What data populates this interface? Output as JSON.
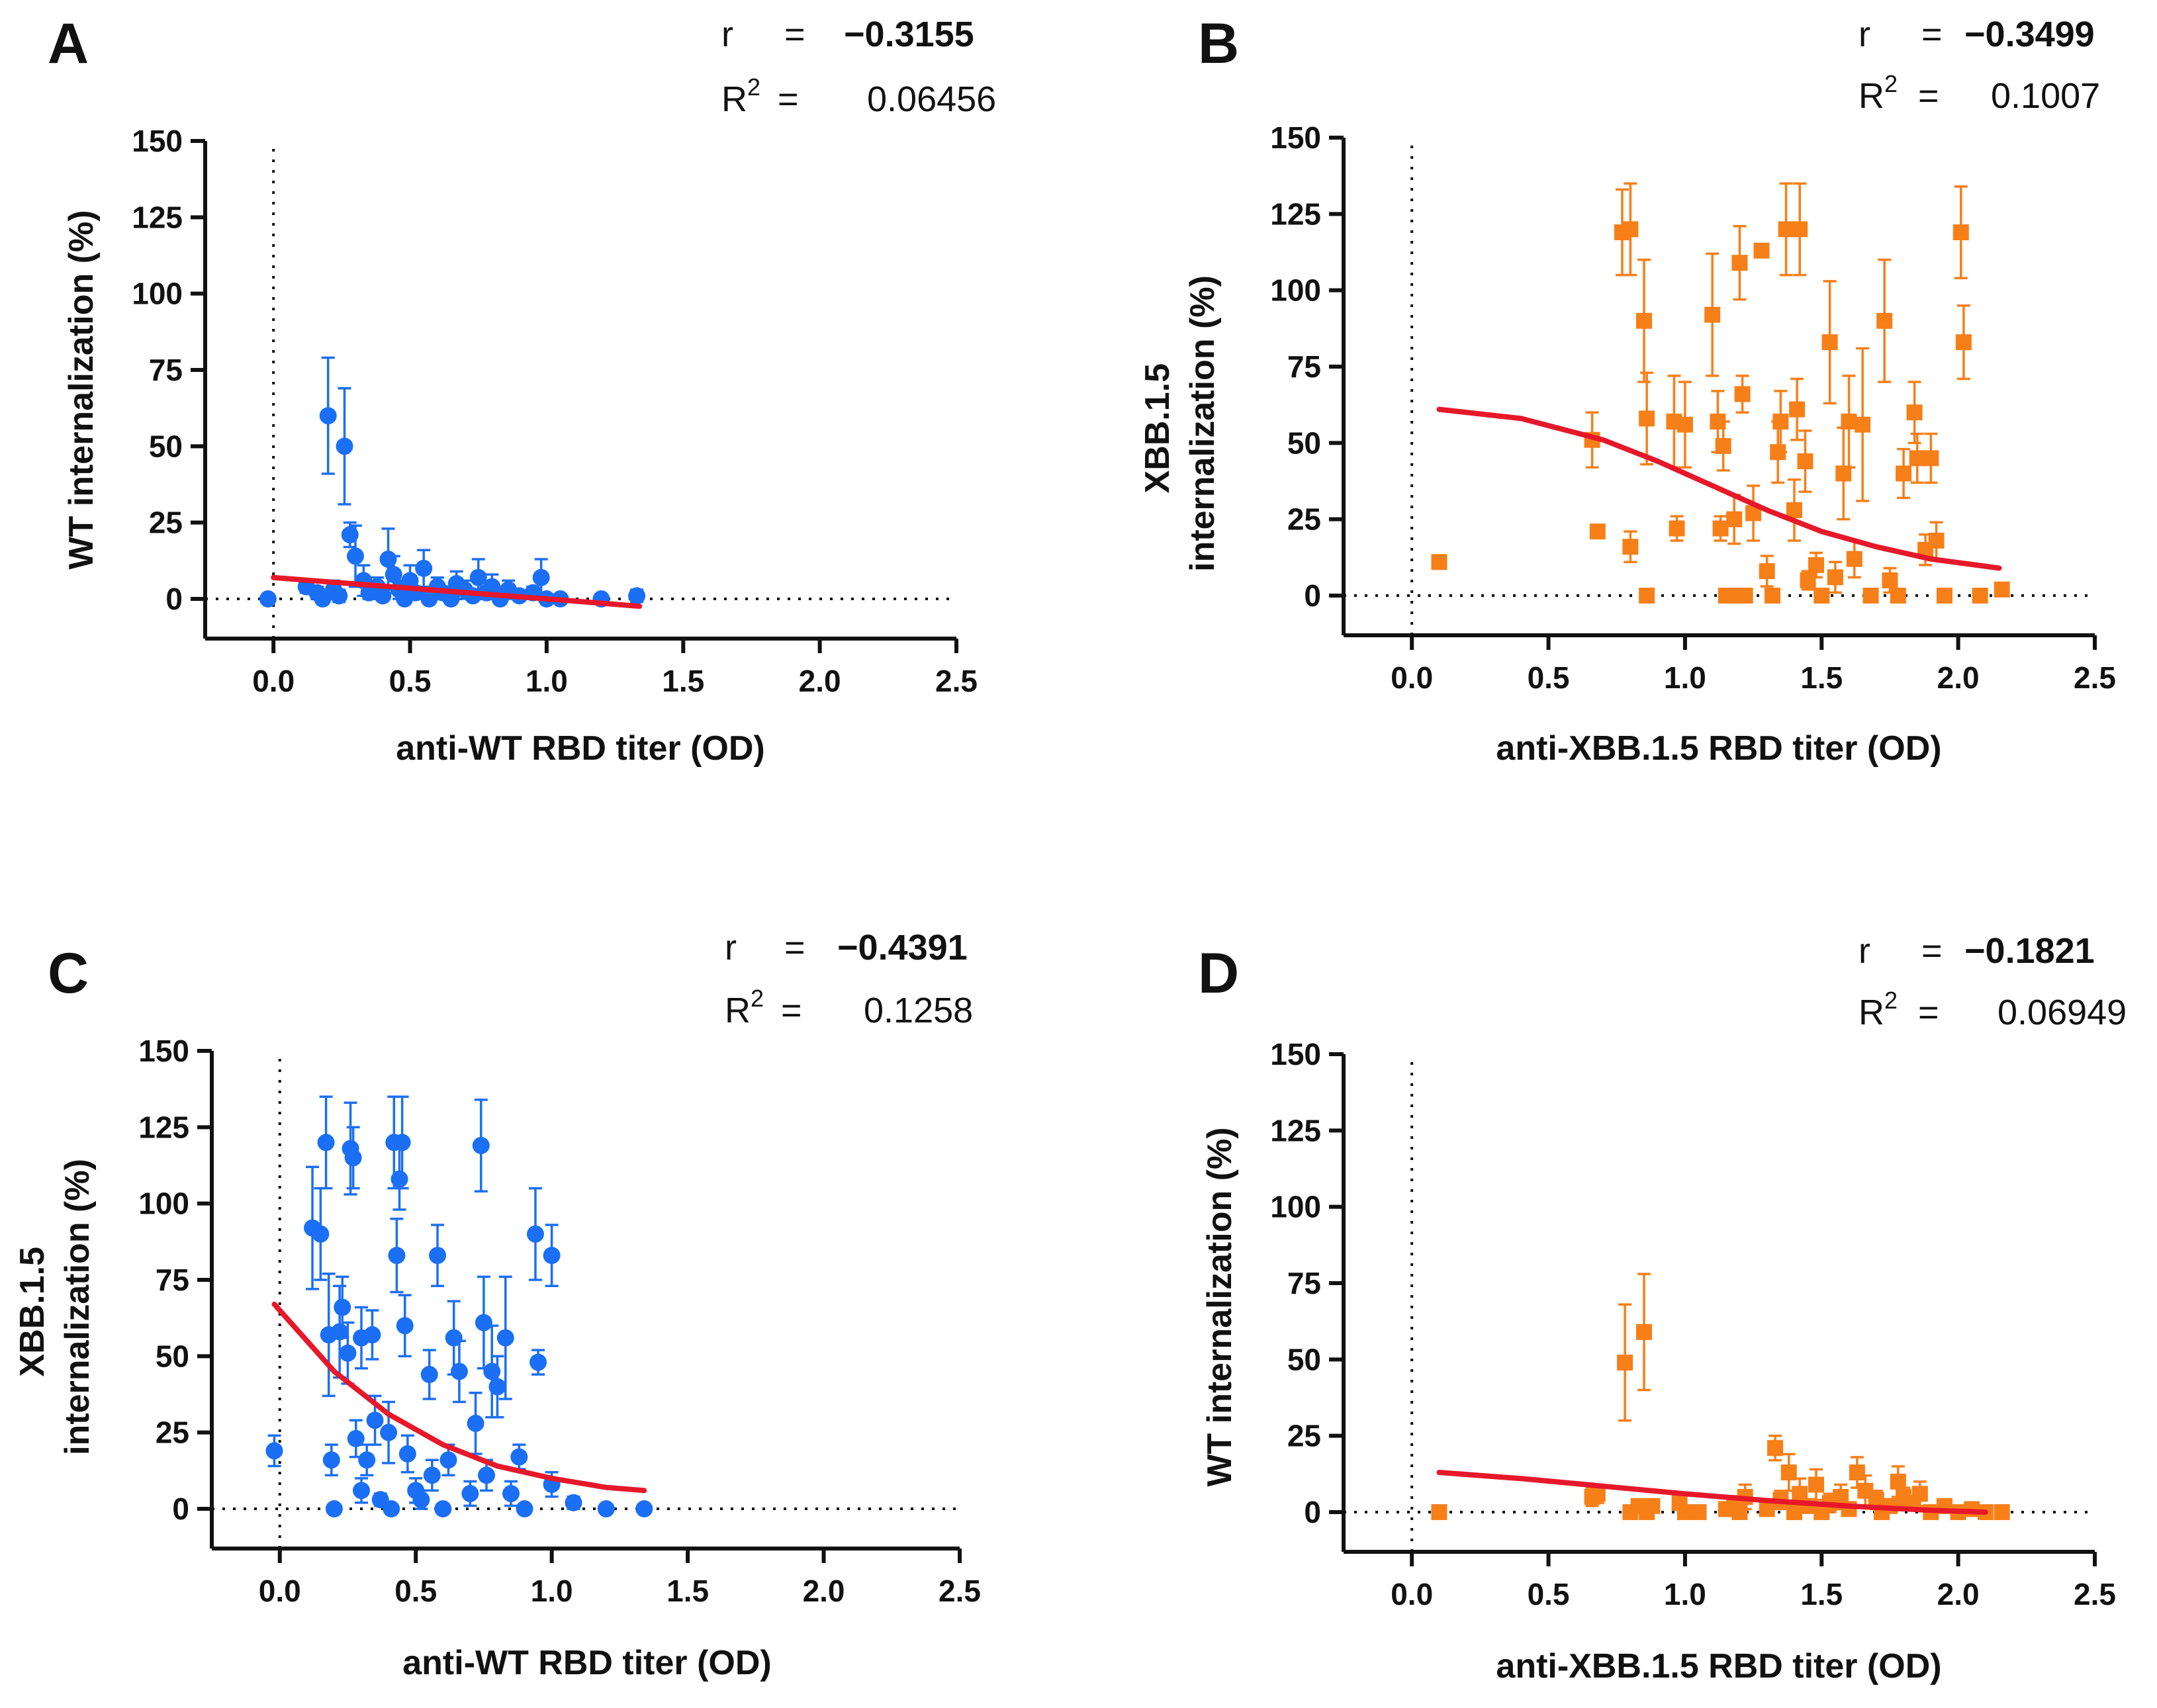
{
  "figure": {
    "background": "#ffffff",
    "colors": {
      "blue": "#1a6ff5",
      "orange": "#f77f18",
      "fit": "#e6182a",
      "axis": "#111111"
    }
  },
  "chart_data": [
    {
      "id": "A",
      "type": "scatter",
      "letter": "A",
      "color": "blue",
      "marker": "circle",
      "stats": {
        "r_label": "r",
        "r_eq": "=",
        "r": "−0.3155",
        "r2_label": "R",
        "r2_sup": "2",
        "r2_eq": "=",
        "r2": "0.06456"
      },
      "xlabel": "anti-WT RBD titer (OD)",
      "ylabel_lines": [
        "WT internalization (%)"
      ],
      "xlim": [
        -0.25,
        2.5
      ],
      "ylim": [
        -13,
        150
      ],
      "xticks": [
        "0.0",
        "0.5",
        "1.0",
        "1.5",
        "2.0",
        "2.5"
      ],
      "xtick_values": [
        0,
        0.5,
        1,
        1.5,
        2,
        2.5
      ],
      "yticks": [
        "0",
        "25",
        "50",
        "75",
        "100",
        "125",
        "150"
      ],
      "ytick_values": [
        0,
        25,
        50,
        75,
        100,
        125,
        150
      ],
      "fit": {
        "x": [
          0,
          0.2,
          0.4,
          0.6,
          0.8,
          1.0,
          1.2,
          1.34
        ],
        "y": [
          7,
          5.6,
          4.2,
          2.8,
          1.4,
          0,
          -1.4,
          -2.4
        ]
      },
      "points": [
        [
          -0.02,
          0,
          0
        ],
        [
          0.12,
          4,
          2
        ],
        [
          0.16,
          2,
          2
        ],
        [
          0.18,
          0,
          1
        ],
        [
          0.2,
          60,
          19
        ],
        [
          0.22,
          3,
          3
        ],
        [
          0.24,
          1,
          2
        ],
        [
          0.26,
          50,
          19
        ],
        [
          0.28,
          21,
          4
        ],
        [
          0.3,
          14,
          10
        ],
        [
          0.33,
          6,
          5
        ],
        [
          0.35,
          2,
          2
        ],
        [
          0.38,
          4,
          3
        ],
        [
          0.4,
          1,
          1
        ],
        [
          0.42,
          13,
          10
        ],
        [
          0.44,
          8,
          6
        ],
        [
          0.46,
          3,
          3
        ],
        [
          0.48,
          0,
          1
        ],
        [
          0.5,
          6,
          5
        ],
        [
          0.52,
          2,
          2
        ],
        [
          0.55,
          10,
          6
        ],
        [
          0.57,
          0,
          1
        ],
        [
          0.6,
          4,
          3
        ],
        [
          0.62,
          2,
          2
        ],
        [
          0.65,
          0,
          1
        ],
        [
          0.67,
          5,
          4
        ],
        [
          0.7,
          3,
          3
        ],
        [
          0.73,
          1,
          1
        ],
        [
          0.75,
          7,
          6
        ],
        [
          0.78,
          2,
          2
        ],
        [
          0.8,
          4,
          4
        ],
        [
          0.83,
          0,
          1
        ],
        [
          0.86,
          3,
          3
        ],
        [
          0.9,
          1,
          1
        ],
        [
          0.95,
          2,
          2
        ],
        [
          0.98,
          7,
          6
        ],
        [
          1.0,
          0,
          1
        ],
        [
          1.05,
          0,
          1
        ],
        [
          1.2,
          0,
          1
        ],
        [
          1.33,
          1,
          2
        ]
      ]
    },
    {
      "id": "B",
      "type": "scatter",
      "letter": "B",
      "color": "orange",
      "marker": "square",
      "stats": {
        "r_label": "r",
        "r_eq": "=",
        "r": "−0.3499",
        "r2_label": "R",
        "r2_sup": "2",
        "r2_eq": "=",
        "r2": "0.1007"
      },
      "xlabel": "anti-XBB.1.5 RBD titer (OD)",
      "ylabel_lines": [
        "XBB.1.5",
        "internalization (%)"
      ],
      "xlim": [
        -0.25,
        2.5
      ],
      "ylim": [
        -13,
        150
      ],
      "xticks": [
        "0.0",
        "0.5",
        "1.0",
        "1.5",
        "2.0",
        "2.5"
      ],
      "xtick_values": [
        0,
        0.5,
        1,
        1.5,
        2,
        2.5
      ],
      "yticks": [
        "0",
        "25",
        "50",
        "75",
        "100",
        "125",
        "150"
      ],
      "ytick_values": [
        0,
        25,
        50,
        75,
        100,
        125,
        150
      ],
      "fit": {
        "x": [
          0.1,
          0.4,
          0.7,
          0.9,
          1.1,
          1.3,
          1.5,
          1.7,
          1.9,
          2.15
        ],
        "y": [
          61,
          58,
          51,
          44,
          36,
          28,
          21,
          16,
          12,
          9
        ]
      },
      "points": [
        [
          0.1,
          11,
          0
        ],
        [
          0.66,
          51,
          9
        ],
        [
          0.68,
          21,
          2
        ],
        [
          0.77,
          119,
          14
        ],
        [
          0.8,
          120,
          15
        ],
        [
          0.8,
          16,
          5
        ],
        [
          0.85,
          90,
          20
        ],
        [
          0.86,
          58,
          15
        ],
        [
          0.86,
          0,
          1
        ],
        [
          0.96,
          57,
          15
        ],
        [
          0.97,
          22,
          4
        ],
        [
          1.0,
          56,
          14
        ],
        [
          1.1,
          92,
          20
        ],
        [
          1.12,
          57,
          10
        ],
        [
          1.13,
          22,
          4
        ],
        [
          1.14,
          49,
          8
        ],
        [
          1.15,
          0,
          1
        ],
        [
          1.18,
          25,
          8
        ],
        [
          1.19,
          0,
          1
        ],
        [
          1.2,
          109,
          12
        ],
        [
          1.21,
          66,
          6
        ],
        [
          1.22,
          0,
          1
        ],
        [
          1.25,
          27,
          9
        ],
        [
          1.28,
          113,
          2
        ],
        [
          1.3,
          8,
          5
        ],
        [
          1.32,
          0,
          1
        ],
        [
          1.34,
          47,
          10
        ],
        [
          1.35,
          57,
          10
        ],
        [
          1.37,
          120,
          15
        ],
        [
          1.4,
          28,
          10
        ],
        [
          1.41,
          61,
          10
        ],
        [
          1.42,
          120,
          15
        ],
        [
          1.44,
          44,
          10
        ],
        [
          1.45,
          5,
          3
        ],
        [
          1.48,
          10,
          4
        ],
        [
          1.5,
          0,
          1
        ],
        [
          1.53,
          83,
          20
        ],
        [
          1.55,
          6,
          5
        ],
        [
          1.58,
          40,
          15
        ],
        [
          1.6,
          57,
          15
        ],
        [
          1.62,
          12,
          6
        ],
        [
          1.65,
          56,
          25
        ],
        [
          1.68,
          0,
          1
        ],
        [
          1.73,
          90,
          20
        ],
        [
          1.75,
          5,
          4
        ],
        [
          1.78,
          0,
          1
        ],
        [
          1.8,
          40,
          8
        ],
        [
          1.84,
          60,
          10
        ],
        [
          1.85,
          45,
          8
        ],
        [
          1.88,
          15,
          5
        ],
        [
          1.9,
          45,
          8
        ],
        [
          1.92,
          18,
          6
        ],
        [
          1.95,
          0,
          1
        ],
        [
          2.01,
          119,
          15
        ],
        [
          2.02,
          83,
          12
        ],
        [
          2.08,
          0,
          1
        ],
        [
          2.16,
          2,
          2
        ]
      ]
    },
    {
      "id": "C",
      "type": "scatter",
      "letter": "C",
      "color": "blue",
      "marker": "circle",
      "stats": {
        "r_label": "r",
        "r_eq": "=",
        "r": "−0.4391",
        "r2_label": "R",
        "r2_sup": "2",
        "r2_eq": "=",
        "r2": "0.1258"
      },
      "xlabel": "anti-WT RBD titer (OD)",
      "ylabel_lines": [
        "XBB.1.5",
        "internalization (%)"
      ],
      "xlim": [
        -0.25,
        2.5
      ],
      "ylim": [
        -13,
        150
      ],
      "xticks": [
        "0.0",
        "0.5",
        "1.0",
        "1.5",
        "2.0",
        "2.5"
      ],
      "xtick_values": [
        0,
        0.5,
        1,
        1.5,
        2,
        2.5
      ],
      "yticks": [
        "0",
        "25",
        "50",
        "75",
        "100",
        "125",
        "150"
      ],
      "ytick_values": [
        0,
        25,
        50,
        75,
        100,
        125,
        150
      ],
      "fit": {
        "x": [
          -0.02,
          0.2,
          0.4,
          0.6,
          0.8,
          1.0,
          1.2,
          1.34
        ],
        "y": [
          67,
          45,
          31,
          21,
          14,
          10,
          7,
          6
        ]
      },
      "points": [
        [
          -0.02,
          19,
          5
        ],
        [
          0.12,
          92,
          20
        ],
        [
          0.15,
          90,
          15
        ],
        [
          0.17,
          120,
          15
        ],
        [
          0.18,
          57,
          20
        ],
        [
          0.19,
          16,
          5
        ],
        [
          0.2,
          0,
          1
        ],
        [
          0.22,
          58,
          15
        ],
        [
          0.23,
          66,
          10
        ],
        [
          0.25,
          51,
          10
        ],
        [
          0.26,
          118,
          15
        ],
        [
          0.27,
          115,
          10
        ],
        [
          0.28,
          23,
          6
        ],
        [
          0.3,
          56,
          10
        ],
        [
          0.3,
          6,
          4
        ],
        [
          0.32,
          16,
          5
        ],
        [
          0.34,
          57,
          8
        ],
        [
          0.35,
          29,
          8
        ],
        [
          0.37,
          3,
          2
        ],
        [
          0.4,
          25,
          10
        ],
        [
          0.41,
          0,
          1
        ],
        [
          0.42,
          120,
          15
        ],
        [
          0.43,
          83,
          12
        ],
        [
          0.44,
          108,
          10
        ],
        [
          0.45,
          120,
          15
        ],
        [
          0.46,
          60,
          10
        ],
        [
          0.47,
          18,
          6
        ],
        [
          0.5,
          6,
          4
        ],
        [
          0.52,
          3,
          3
        ],
        [
          0.55,
          44,
          8
        ],
        [
          0.56,
          11,
          5
        ],
        [
          0.58,
          83,
          10
        ],
        [
          0.6,
          0,
          1
        ],
        [
          0.62,
          16,
          5
        ],
        [
          0.64,
          56,
          12
        ],
        [
          0.66,
          45,
          10
        ],
        [
          0.7,
          5,
          4
        ],
        [
          0.72,
          28,
          10
        ],
        [
          0.74,
          119,
          15
        ],
        [
          0.75,
          61,
          15
        ],
        [
          0.76,
          11,
          5
        ],
        [
          0.78,
          45,
          15
        ],
        [
          0.8,
          40,
          10
        ],
        [
          0.83,
          56,
          20
        ],
        [
          0.85,
          5,
          4
        ],
        [
          0.88,
          17,
          4
        ],
        [
          0.9,
          0,
          1
        ],
        [
          0.94,
          90,
          15
        ],
        [
          0.95,
          48,
          4
        ],
        [
          1.0,
          83,
          10
        ],
        [
          1.0,
          8,
          4
        ],
        [
          1.08,
          2,
          2
        ],
        [
          1.2,
          0,
          1
        ],
        [
          1.34,
          0,
          1
        ]
      ]
    },
    {
      "id": "D",
      "type": "scatter",
      "letter": "D",
      "color": "orange",
      "marker": "square",
      "stats": {
        "r_label": "r",
        "r_eq": "=",
        "r": "−0.1821",
        "r2_label": "R",
        "r2_sup": "2",
        "r2_eq": "=",
        "r2": "0.06949"
      },
      "xlabel": "anti-XBB.1.5 RBD titer (OD)",
      "ylabel_lines": [
        "WT internalization (%)"
      ],
      "xlim": [
        -0.25,
        2.5
      ],
      "ylim": [
        -13,
        150
      ],
      "xticks": [
        "0.0",
        "0.5",
        "1.0",
        "1.5",
        "2.0",
        "2.5"
      ],
      "xtick_values": [
        0,
        0.5,
        1,
        1.5,
        2,
        2.5
      ],
      "yticks": [
        "0",
        "25",
        "50",
        "75",
        "100",
        "125",
        "150"
      ],
      "ytick_values": [
        0,
        25,
        50,
        75,
        100,
        125,
        150
      ],
      "fit": {
        "x": [
          0.1,
          0.4,
          0.7,
          1.0,
          1.3,
          1.6,
          1.9,
          2.1
        ],
        "y": [
          13,
          11,
          8.5,
          6,
          3.8,
          2,
          0.6,
          0
        ]
      },
      "points": [
        [
          0.1,
          0,
          0
        ],
        [
          0.66,
          5,
          3
        ],
        [
          0.68,
          6,
          3
        ],
        [
          0.78,
          49,
          19
        ],
        [
          0.8,
          0,
          1
        ],
        [
          0.83,
          2,
          2
        ],
        [
          0.85,
          59,
          19
        ],
        [
          0.86,
          0,
          1
        ],
        [
          0.88,
          2,
          2
        ],
        [
          0.98,
          3,
          2
        ],
        [
          1.0,
          0,
          1
        ],
        [
          1.05,
          0,
          1
        ],
        [
          1.15,
          1,
          1
        ],
        [
          1.18,
          3,
          2
        ],
        [
          1.2,
          0,
          1
        ],
        [
          1.22,
          5,
          4
        ],
        [
          1.3,
          1,
          1
        ],
        [
          1.33,
          21,
          4
        ],
        [
          1.35,
          4,
          3
        ],
        [
          1.38,
          13,
          6
        ],
        [
          1.4,
          0,
          1
        ],
        [
          1.42,
          6,
          5
        ],
        [
          1.45,
          2,
          2
        ],
        [
          1.48,
          9,
          5
        ],
        [
          1.5,
          0,
          1
        ],
        [
          1.53,
          3,
          3
        ],
        [
          1.57,
          5,
          4
        ],
        [
          1.6,
          1,
          1
        ],
        [
          1.63,
          13,
          5
        ],
        [
          1.66,
          7,
          5
        ],
        [
          1.7,
          4,
          3
        ],
        [
          1.72,
          0,
          1
        ],
        [
          1.75,
          2,
          2
        ],
        [
          1.78,
          10,
          5
        ],
        [
          1.8,
          5,
          3
        ],
        [
          1.83,
          3,
          2
        ],
        [
          1.86,
          6,
          4
        ],
        [
          1.9,
          0,
          1
        ],
        [
          1.95,
          2,
          2
        ],
        [
          2.0,
          0,
          1
        ],
        [
          2.05,
          1,
          1
        ],
        [
          2.1,
          0,
          1
        ],
        [
          2.16,
          0,
          1
        ]
      ]
    }
  ]
}
